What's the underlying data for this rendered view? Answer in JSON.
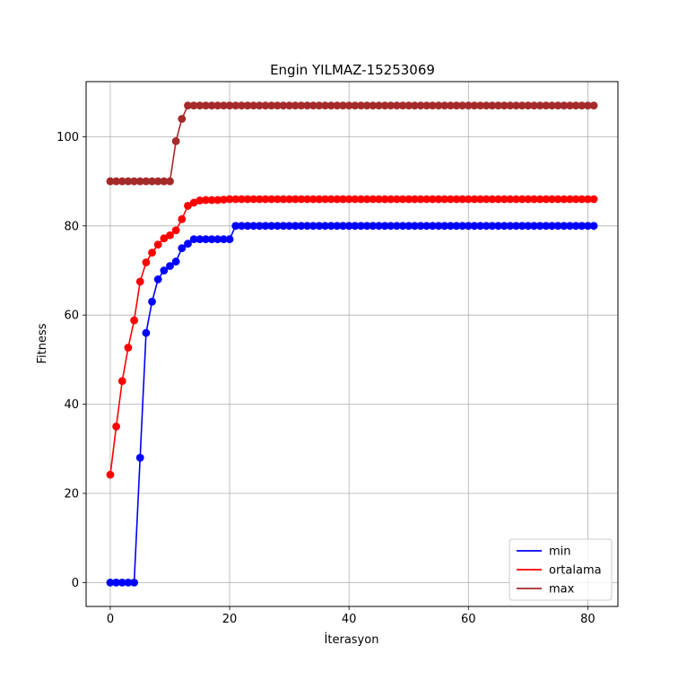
{
  "chart_data": {
    "type": "line",
    "title": "Engin YILMAZ-15253069",
    "xlabel": "İterasyon",
    "ylabel": "Fitness",
    "xlim": [
      -4.05,
      85.05
    ],
    "ylim": [
      -5.35,
      112.35
    ],
    "xticks": [
      0,
      20,
      40,
      60,
      80
    ],
    "yticks": [
      0,
      20,
      40,
      60,
      80,
      100
    ],
    "grid": true,
    "markers": true,
    "legend_position": "lower-right",
    "series": [
      {
        "name": "min",
        "color": "#0000ff",
        "values": [
          0,
          0,
          0,
          0,
          0,
          28,
          56,
          63,
          68,
          70,
          71,
          72,
          75,
          76,
          77,
          77,
          77,
          77,
          77,
          77,
          77,
          80,
          80,
          80,
          80,
          80,
          80,
          80,
          80,
          80,
          80,
          80,
          80,
          80,
          80,
          80,
          80,
          80,
          80,
          80,
          80,
          80,
          80,
          80,
          80,
          80,
          80,
          80,
          80,
          80,
          80,
          80,
          80,
          80,
          80,
          80,
          80,
          80,
          80,
          80,
          80,
          80,
          80,
          80,
          80,
          80,
          80,
          80,
          80,
          80,
          80,
          80,
          80,
          80,
          80,
          80,
          80,
          80,
          80,
          80,
          80,
          80
        ]
      },
      {
        "name": "ortalama",
        "color": "#ff0000",
        "values": [
          24.2,
          35,
          45.2,
          52.7,
          58.8,
          67.5,
          71.8,
          74,
          75.8,
          77.2,
          77.9,
          79,
          81.5,
          84.5,
          85.2,
          85.7,
          85.8,
          85.8,
          85.8,
          85.9,
          86,
          86,
          86,
          86,
          86,
          86,
          86,
          86,
          86,
          86,
          86,
          86,
          86,
          86,
          86,
          86,
          86,
          86,
          86,
          86,
          86,
          86,
          86,
          86,
          86,
          86,
          86,
          86,
          86,
          86,
          86,
          86,
          86,
          86,
          86,
          86,
          86,
          86,
          86,
          86,
          86,
          86,
          86,
          86,
          86,
          86,
          86,
          86,
          86,
          86,
          86,
          86,
          86,
          86,
          86,
          86,
          86,
          86,
          86,
          86,
          86,
          86
        ]
      },
      {
        "name": "max",
        "color": "#a52a2a",
        "values": [
          90,
          90,
          90,
          90,
          90,
          90,
          90,
          90,
          90,
          90,
          90,
          99,
          104,
          107,
          107,
          107,
          107,
          107,
          107,
          107,
          107,
          107,
          107,
          107,
          107,
          107,
          107,
          107,
          107,
          107,
          107,
          107,
          107,
          107,
          107,
          107,
          107,
          107,
          107,
          107,
          107,
          107,
          107,
          107,
          107,
          107,
          107,
          107,
          107,
          107,
          107,
          107,
          107,
          107,
          107,
          107,
          107,
          107,
          107,
          107,
          107,
          107,
          107,
          107,
          107,
          107,
          107,
          107,
          107,
          107,
          107,
          107,
          107,
          107,
          107,
          107,
          107,
          107,
          107,
          107,
          107,
          107
        ]
      }
    ]
  }
}
